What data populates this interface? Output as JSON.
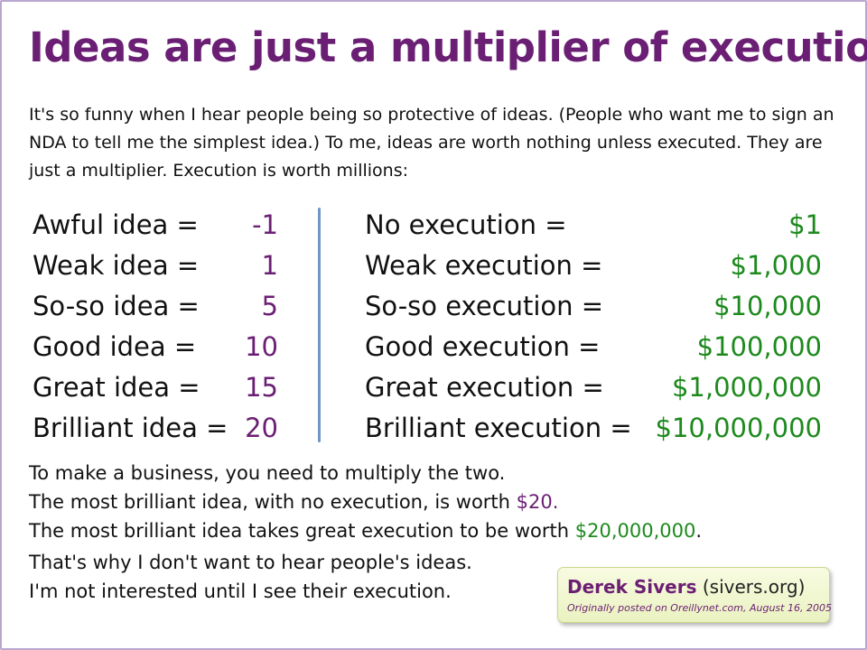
{
  "title": "Ideas are just a multiplier of execution",
  "intro": "It's so funny when I hear people being so protective of ideas. (People who want me to sign an NDA to tell me the simplest idea.) To me, ideas are worth nothing unless executed. They are just a multiplier. Execution is worth millions:",
  "ideas": [
    {
      "label": "Awful idea =",
      "value": "-1"
    },
    {
      "label": "Weak idea =",
      "value": "1"
    },
    {
      "label": "So-so idea =",
      "value": "5"
    },
    {
      "label": "Good idea =",
      "value": "10"
    },
    {
      "label": "Great idea =",
      "value": "15"
    },
    {
      "label": "Brilliant idea =",
      "value": "20"
    }
  ],
  "executions": [
    {
      "label": "No execution =",
      "value": "$1"
    },
    {
      "label": "Weak execution =",
      "value": "$1,000"
    },
    {
      "label": "So-so execution =",
      "value": "$10,000"
    },
    {
      "label": "Good execution =",
      "value": "$100,000"
    },
    {
      "label": "Great execution =",
      "value": "$1,000,000"
    },
    {
      "label": "Brilliant execution =",
      "value": "$10,000,000"
    }
  ],
  "outro": {
    "line1": "To make a business, you need to multiply the two.",
    "line2_text": "The most brilliant idea, with no execution, is worth ",
    "line2_value": "$20.",
    "line3_text": "The most brilliant idea takes great execution to be worth ",
    "line3_value": "$20,000,000",
    "line3_end": ".",
    "line4": "That's why I don't want to hear people's ideas.",
    "line5": "I'm not interested until I see their execution."
  },
  "credit": {
    "name": "Derek Sivers",
    "site": " (sivers.org)",
    "posted": "Originally posted on Oreillynet.com, August 16, 2005"
  },
  "colors": {
    "title": "#6b1f74",
    "idea_value": "#6b1f74",
    "execution_value": "#1d8a1d",
    "divider": "#6e96c6",
    "frame": "#b9a7cf"
  }
}
